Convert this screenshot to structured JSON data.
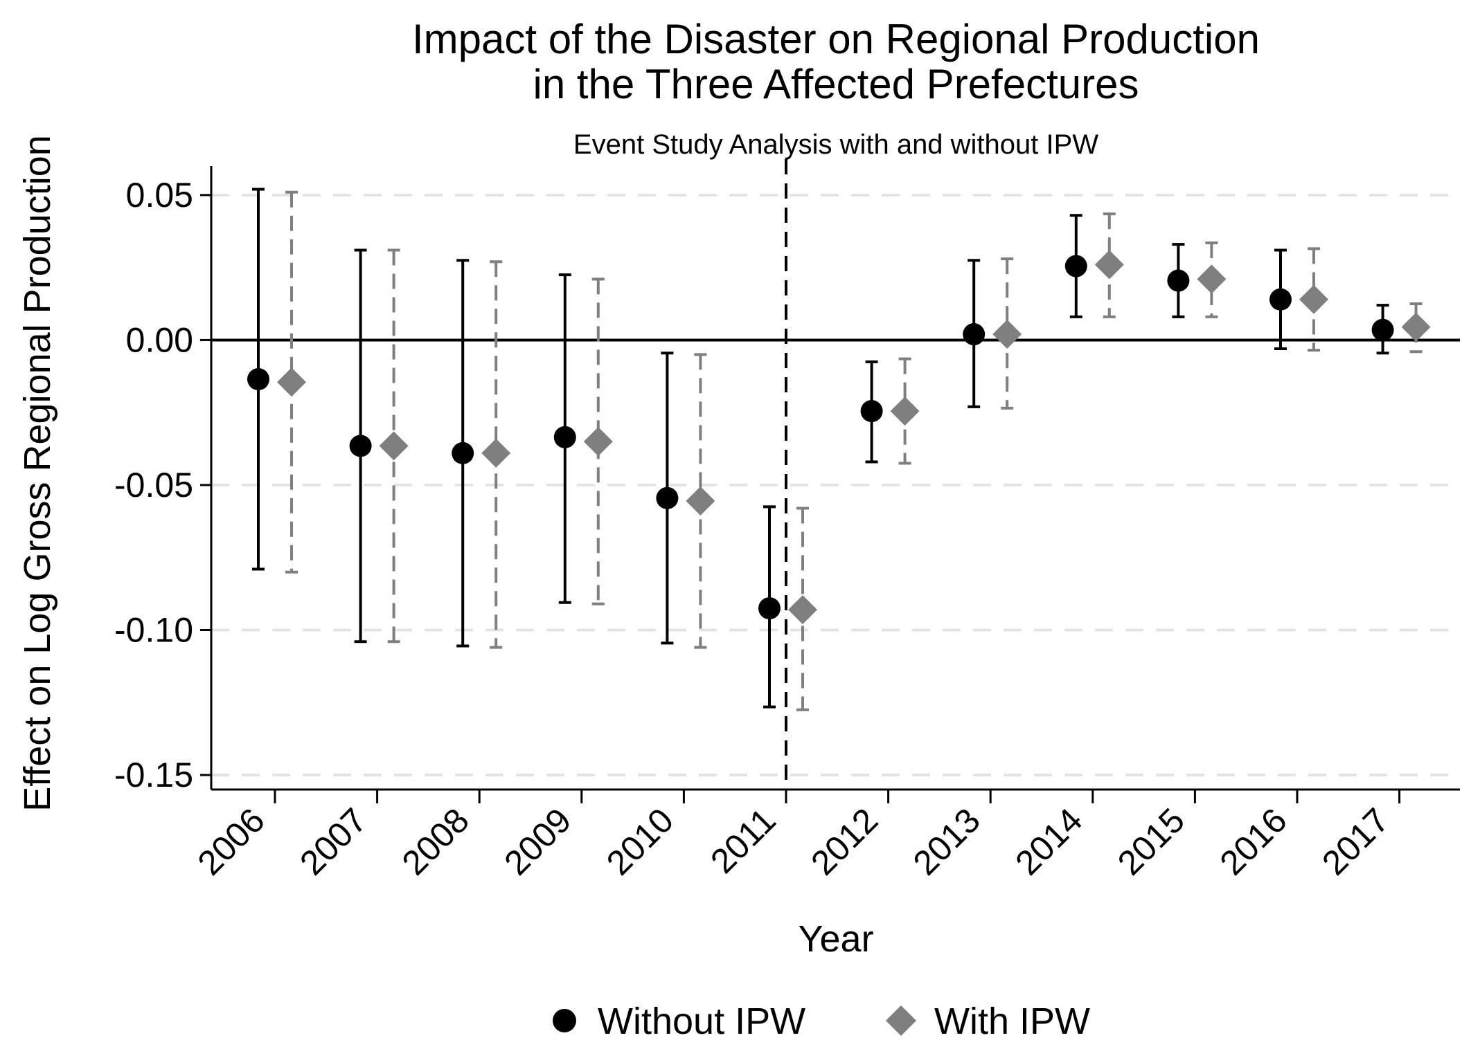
{
  "chart_data": {
    "type": "scatter",
    "title_line1": "Impact of the Disaster on Regional Production",
    "title_line2": "in the Three Affected Prefectures",
    "subtitle": "Event Study Analysis with and without IPW",
    "xlabel": "Year",
    "ylabel": "Effect on Log Gross Regional Production",
    "ylim": [
      -0.155,
      0.06
    ],
    "yticks": [
      0.05,
      0.0,
      -0.05,
      -0.1,
      -0.15
    ],
    "ytick_labels": [
      "0.05",
      "0.00",
      "-0.05",
      "-0.10",
      "-0.15"
    ],
    "categories": [
      "2006",
      "2007",
      "2008",
      "2009",
      "2010",
      "2011",
      "2012",
      "2013",
      "2014",
      "2015",
      "2016",
      "2017"
    ],
    "event_line": "2011",
    "horizontal_grid": "dashed",
    "zero_line": true,
    "legend_position": "bottom",
    "series": [
      {
        "name": "Without IPW",
        "marker": "circle",
        "color": "#000000",
        "ci_style": "solid",
        "estimates": [
          -0.0135,
          -0.0365,
          -0.039,
          -0.0335,
          -0.0545,
          -0.0925,
          -0.0245,
          0.002,
          0.0255,
          0.0205,
          0.014,
          0.0035
        ],
        "ci_low": [
          -0.079,
          -0.104,
          -0.1055,
          -0.0905,
          -0.1045,
          -0.1265,
          -0.042,
          -0.023,
          0.008,
          0.008,
          -0.003,
          -0.0045
        ],
        "ci_high": [
          0.052,
          0.031,
          0.0275,
          0.0225,
          -0.0045,
          -0.0575,
          -0.0075,
          0.0275,
          0.043,
          0.033,
          0.031,
          0.012
        ]
      },
      {
        "name": "With IPW",
        "marker": "diamond",
        "color": "#7f7f7f",
        "ci_style": "dashed",
        "estimates": [
          -0.0145,
          -0.0365,
          -0.039,
          -0.035,
          -0.0555,
          -0.093,
          -0.0245,
          0.002,
          0.026,
          0.021,
          0.014,
          0.0045
        ],
        "ci_low": [
          -0.08,
          -0.104,
          -0.106,
          -0.091,
          -0.106,
          -0.1275,
          -0.0425,
          -0.0235,
          0.008,
          0.008,
          -0.0035,
          -0.004
        ],
        "ci_high": [
          0.051,
          0.031,
          0.027,
          0.021,
          -0.005,
          -0.058,
          -0.0065,
          0.028,
          0.0435,
          0.0335,
          0.0315,
          0.0125
        ]
      }
    ]
  }
}
